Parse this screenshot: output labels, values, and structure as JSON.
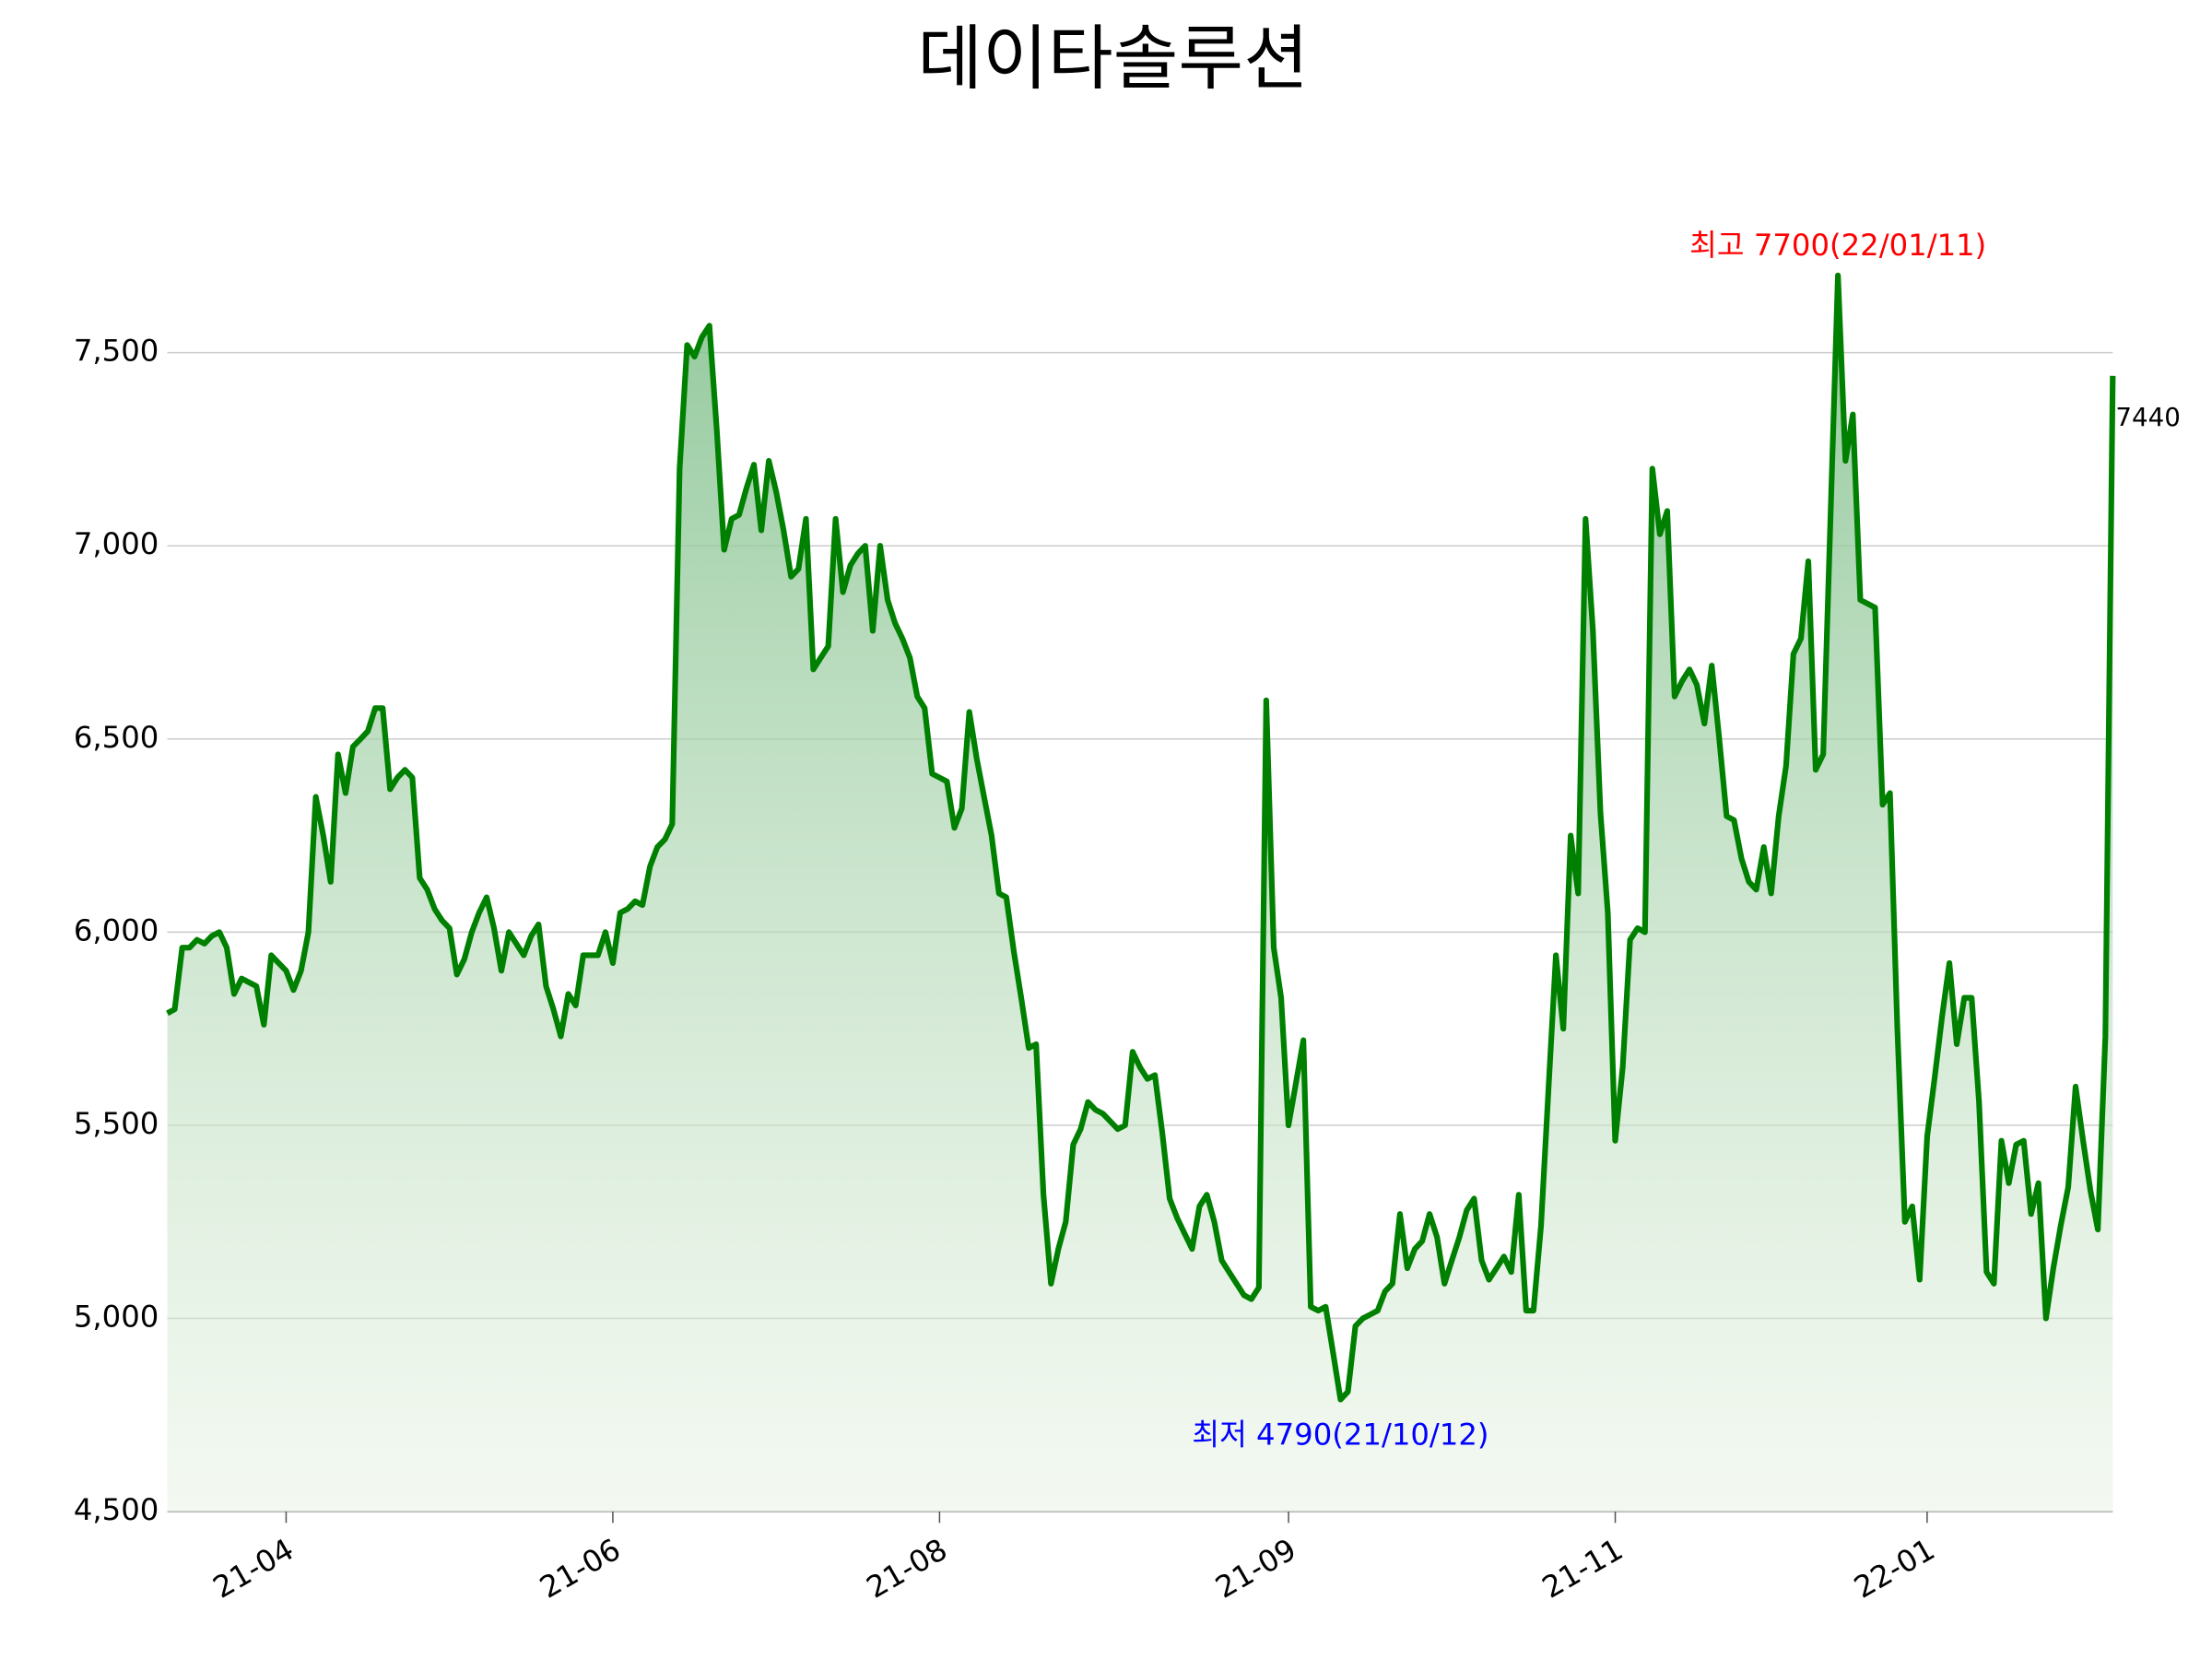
{
  "chart_data": {
    "type": "line",
    "title": "데이타솔루션",
    "series": [
      {
        "name": "데이타솔루션",
        "color": "#008000",
        "values": [
          5790,
          5800,
          5960,
          5960,
          5980,
          5970,
          5990,
          6000,
          5960,
          5840,
          5880,
          5870,
          5860,
          5760,
          5940,
          5920,
          5900,
          5850,
          5900,
          6000,
          6350,
          6250,
          6130,
          6460,
          6360,
          6480,
          6500,
          6520,
          6580,
          6580,
          6370,
          6400,
          6420,
          6400,
          6140,
          6110,
          6060,
          6030,
          6010,
          5890,
          5930,
          6000,
          6050,
          6090,
          6010,
          5900,
          6000,
          5970,
          5940,
          5990,
          6020,
          5860,
          5800,
          5730,
          5840,
          5810,
          5940,
          5940,
          5940,
          6000,
          5920,
          6050,
          6060,
          6080,
          6070,
          6170,
          6220,
          6240,
          6280,
          7200,
          7520,
          7490,
          7540,
          7570,
          7300,
          6990,
          7070,
          7080,
          7150,
          7210,
          7040,
          7220,
          7140,
          7040,
          6920,
          6940,
          7070,
          6680,
          6710,
          6740,
          7070,
          6880,
          6950,
          6980,
          7000,
          6780,
          7000,
          6860,
          6800,
          6760,
          6710,
          6610,
          6580,
          6410,
          6400,
          6390,
          6270,
          6320,
          6570,
          6450,
          6350,
          6250,
          6100,
          6090,
          5950,
          5830,
          5700,
          5710,
          5320,
          5090,
          5180,
          5250,
          5450,
          5490,
          5560,
          5540,
          5530,
          5510,
          5490,
          5500,
          5690,
          5650,
          5620,
          5630,
          5480,
          5310,
          5260,
          5220,
          5180,
          5290,
          5320,
          5250,
          5150,
          5120,
          5090,
          5060,
          5050,
          5080,
          6600,
          5960,
          5830,
          5500,
          5610,
          5720,
          5030,
          5020,
          5030,
          4910,
          4790,
          4810,
          4980,
          5000,
          5010,
          5020,
          5070,
          5090,
          5270,
          5130,
          5180,
          5200,
          5270,
          5210,
          5090,
          5150,
          5210,
          5280,
          5310,
          5150,
          5100,
          5130,
          5160,
          5120,
          5320,
          5020,
          5020,
          5240,
          5590,
          5940,
          5750,
          6250,
          6100,
          7070,
          6780,
          6310,
          6050,
          5460,
          5650,
          5980,
          6010,
          6000,
          7200,
          7030,
          7090,
          6610,
          6650,
          6680,
          6640,
          6540,
          6690,
          6500,
          6300,
          6290,
          6190,
          6130,
          6110,
          6220,
          6100,
          6300,
          6430,
          6720,
          6760,
          6960,
          6420,
          6460,
          7080,
          7700,
          7220,
          7340,
          6860,
          6850,
          6840,
          6330,
          6360,
          5750,
          5250,
          5290,
          5100,
          5470,
          5620,
          5780,
          5920,
          5710,
          5830,
          5830,
          5560,
          5120,
          5090,
          5460,
          5350,
          5450,
          5460,
          5270,
          5350,
          5000,
          5130,
          5240,
          5340,
          5600,
          5460,
          5330,
          5230,
          5730,
          7440
        ]
      }
    ],
    "xlim": [
      0,
      262
    ],
    "xticks": [
      {
        "value": 16,
        "label": "21-04"
      },
      {
        "value": 60,
        "label": "21-06"
      },
      {
        "value": 104,
        "label": "21-08"
      },
      {
        "value": 151,
        "label": "21-09"
      },
      {
        "value": 195,
        "label": "21-11"
      },
      {
        "value": 237,
        "label": "22-01"
      }
    ],
    "ylim": [
      4500,
      7800
    ],
    "yticks": [
      {
        "value": 4500,
        "label": "4,500"
      },
      {
        "value": 5000,
        "label": "5,000"
      },
      {
        "value": 5500,
        "label": "5,500"
      },
      {
        "value": 6000,
        "label": "6,000"
      },
      {
        "value": 6500,
        "label": "6,500"
      },
      {
        "value": 7000,
        "label": "7,000"
      },
      {
        "value": 7500,
        "label": "7,500"
      }
    ],
    "grid": true,
    "max_label": "최고 7700(22/01/11)",
    "max_color": "red",
    "min_label": "최저 4790(21/10/12)",
    "min_color": "blue"
  }
}
